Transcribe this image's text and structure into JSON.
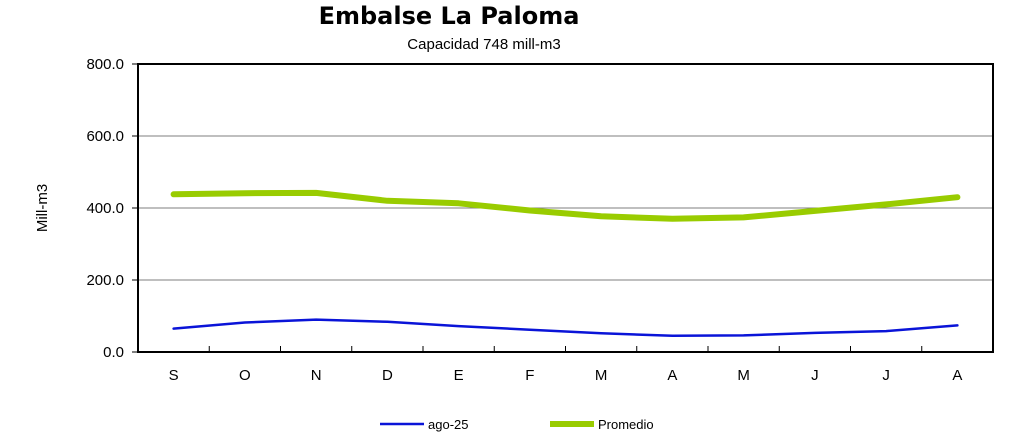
{
  "chart_data": {
    "type": "line",
    "title": "Embalse La Paloma",
    "subtitle": "Capacidad 748 mill-m3",
    "ylabel": "Mill-m3",
    "xlabel": "",
    "categories": [
      "S",
      "O",
      "N",
      "D",
      "E",
      "F",
      "M",
      "A",
      "M",
      "J",
      "J",
      "A"
    ],
    "ylim": [
      0,
      800
    ],
    "yticks": [
      "0.0",
      "200.0",
      "400.0",
      "600.0",
      "800.0"
    ],
    "grid": true,
    "legend_position": "bottom",
    "series": [
      {
        "name": "ago-25",
        "color": "#0a14d8",
        "values": [
          65,
          82,
          90,
          84,
          72,
          62,
          52,
          45,
          46,
          53,
          58,
          74
        ]
      },
      {
        "name": "Promedio",
        "color": "#99cc00",
        "values": [
          438,
          441,
          442,
          420,
          413,
          393,
          377,
          370,
          374,
          392,
          410,
          430
        ]
      }
    ]
  }
}
